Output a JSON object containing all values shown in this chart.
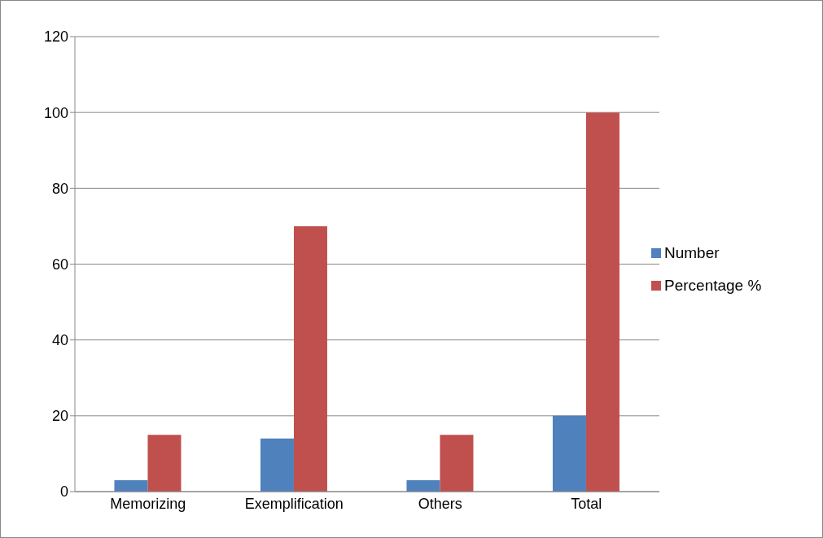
{
  "chart_data": {
    "type": "bar",
    "categories": [
      "Memorizing",
      "Exemplification",
      "Others",
      "Total"
    ],
    "series": [
      {
        "name": "Number",
        "color": "#4f81bd",
        "values": [
          3,
          14,
          3,
          20
        ]
      },
      {
        "name": "Percentage %",
        "color": "#c0504d",
        "values": [
          15,
          70,
          15,
          100
        ]
      }
    ],
    "ylim": [
      0,
      120
    ],
    "yticks": [
      0,
      20,
      40,
      60,
      80,
      100,
      120
    ],
    "grid": "y",
    "legend": "right"
  }
}
